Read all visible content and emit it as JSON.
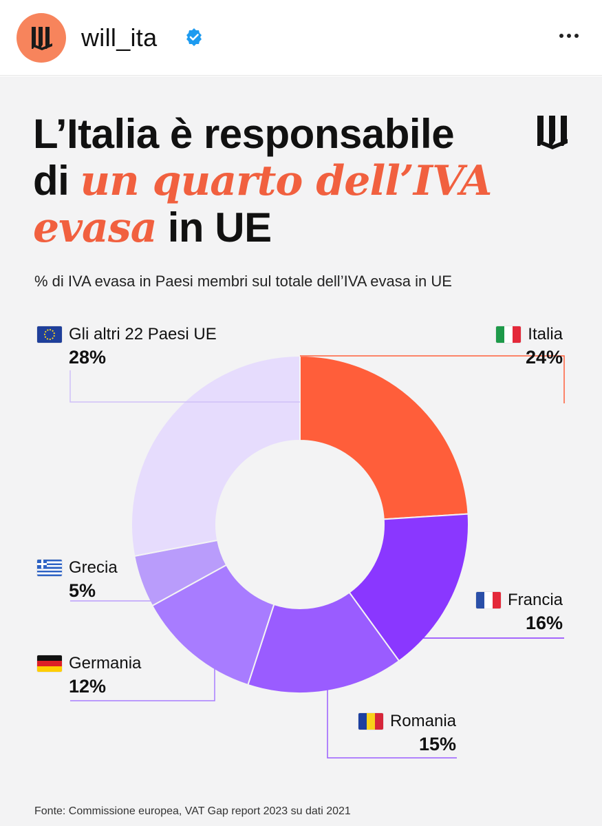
{
  "header": {
    "username": "will_ita",
    "avatar_icon": "will-logo-icon",
    "verified_icon": "verified-badge-icon",
    "more_icon": "more-options-icon"
  },
  "post": {
    "title_line1": "L’Italia è responsabile",
    "title_line2_prefix": "di ",
    "title_highlight1": "un quarto dell’IVA",
    "title_highlight2": "evasa",
    "title_line3_suffix": " in UE",
    "subtitle": "% di IVA evasa in Paesi membri sul totale dell’IVA evasa in UE",
    "source": "Fonte: Commissione europea, VAT Gap report 2023 su dati 2021"
  },
  "colors": {
    "accent": "#f1603f",
    "italia": "#ff5e3a",
    "francia": "#8a37ff",
    "romania": "#9a5cff",
    "germania": "#a87cff",
    "grecia": "#b99cfb",
    "altri": "#e6dcfd",
    "background": "#f3f3f4"
  },
  "chart_data": {
    "type": "pie",
    "donut": true,
    "title": "% di IVA evasa in Paesi membri sul totale dell’IVA evasa in UE",
    "categories": [
      "Italia",
      "Francia",
      "Romania",
      "Germania",
      "Grecia",
      "Gli altri 22 Paesi UE"
    ],
    "values": [
      24,
      16,
      15,
      12,
      5,
      28
    ],
    "labels": [
      "24%",
      "16%",
      "15%",
      "12%",
      "5%",
      "28%"
    ],
    "flags": [
      "flag-italy-icon",
      "flag-france-icon",
      "flag-romania-icon",
      "flag-germany-icon",
      "flag-greece-icon",
      "flag-eu-icon"
    ]
  }
}
